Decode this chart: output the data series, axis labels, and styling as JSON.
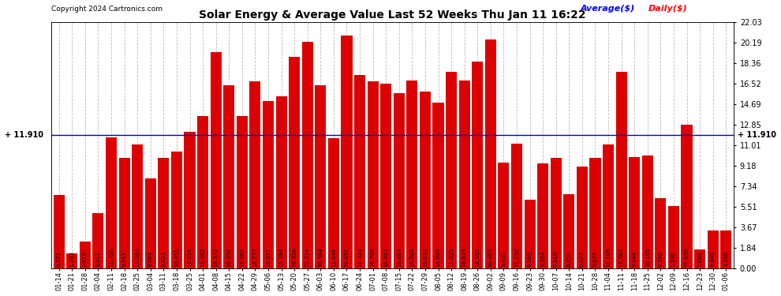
{
  "title": "Solar Energy & Average Value Last 52 Weeks Thu Jan 11 16:22",
  "copyright": "Copyright 2024 Cartronics.com",
  "legend_avg": "Average($)",
  "legend_daily": "Daily($)",
  "average_line": 11.91,
  "average_label": "+ 11.910",
  "ylim_max": 22.03,
  "yticks_right": [
    0.0,
    1.84,
    3.67,
    5.51,
    7.34,
    9.18,
    11.01,
    12.85,
    14.69,
    16.52,
    18.36,
    20.19,
    22.03
  ],
  "bar_color": "#dd0000",
  "avg_line_color": "#0000cc",
  "background_color": "#ffffff",
  "grid_color": "#bbbbbb",
  "categories": [
    "01-14",
    "01-21",
    "01-28",
    "02-04",
    "02-11",
    "02-18",
    "02-25",
    "03-04",
    "03-11",
    "03-18",
    "03-25",
    "04-01",
    "04-08",
    "04-15",
    "04-22",
    "04-29",
    "05-06",
    "05-13",
    "05-20",
    "05-27",
    "06-03",
    "06-10",
    "06-17",
    "06-24",
    "07-01",
    "07-08",
    "07-15",
    "07-22",
    "07-29",
    "08-05",
    "08-12",
    "08-19",
    "08-26",
    "09-02",
    "09-09",
    "09-16",
    "09-23",
    "09-30",
    "10-07",
    "10-14",
    "10-21",
    "10-28",
    "11-04",
    "11-11",
    "11-18",
    "11-25",
    "12-02",
    "12-09",
    "12-16",
    "12-23",
    "12-30",
    "01-06"
  ],
  "values": [
    6.571,
    1.293,
    2.416,
    4.911,
    11.755,
    9.911,
    11.094,
    8.064,
    9.853,
    10.455,
    12.216,
    13.662,
    19.372,
    16.392,
    13.662,
    16.777,
    15.011,
    15.384,
    18.928,
    20.314,
    16.384,
    11.646,
    20.852,
    17.32,
    16.76,
    16.543,
    15.684,
    16.805,
    15.834,
    14.809,
    17.629,
    16.819,
    18.553,
    20.493,
    9.433,
    11.156,
    6.16,
    9.384,
    9.91,
    6.651,
    9.077,
    9.877,
    11.105,
    17.587,
    9.944,
    10.105,
    6.29,
    5.59,
    12.839,
    1.68,
    3.34,
    3.34
  ],
  "value_labels": [
    "6.571",
    "1.293",
    "2.416",
    "4.911",
    "11.755",
    "9.911",
    "11.094",
    "8.064",
    "9.853",
    "10.455",
    "12.216",
    "13.662",
    "19.372",
    "16.392",
    "13.662",
    "16.777",
    "15.011",
    "15.384",
    "18.928",
    "20.314",
    "16.384",
    "11.646",
    "20.852",
    "17.320",
    "16.760",
    "16.543",
    "15.684",
    "16.805",
    "15.834",
    "14.809",
    "17.629",
    "16.819",
    "18.553",
    "20.493",
    "9.433",
    "11.156",
    "6.160",
    "9.384",
    "9.910",
    "6.651",
    "9.077",
    "9.877",
    "11.105",
    "17.587",
    "9.944",
    "10.105",
    "6.290",
    "5.590",
    "12.839",
    "1.680",
    "3.340",
    "3.340"
  ]
}
